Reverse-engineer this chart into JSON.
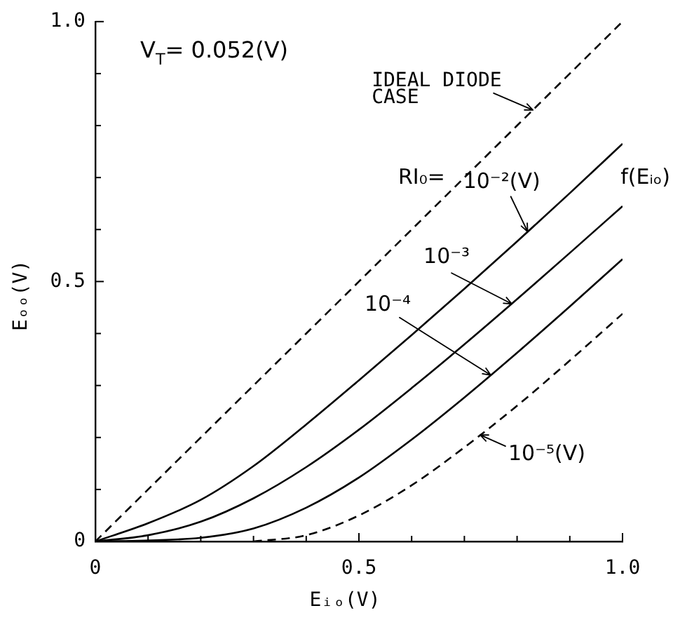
{
  "chart_data": {
    "type": "line",
    "xlabel": "Eᵢₒ(V)",
    "ylabel": "Eₒₒ(V)",
    "annotations": [
      "V$_{T}$= 0.052(V)",
      "RI₀=",
      "f(Eᵢₒ)",
      {
        "text": "IDEAL DIODE CASE",
        "x": 0.83,
        "y": 0.83
      },
      {
        "text": "10⁻²(V)",
        "x": 0.82,
        "y": 0.596
      },
      {
        "text": "10⁻³",
        "x": 0.79,
        "y": 0.457
      },
      {
        "text": "10⁻⁴",
        "x": 0.75,
        "y": 0.32
      },
      {
        "text": "10⁻⁵(V)",
        "x": 0.73,
        "y": 0.205
      }
    ],
    "x": [
      0,
      0.1,
      0.2,
      0.3,
      0.4,
      0.5,
      0.6,
      0.7,
      0.8,
      0.9,
      1.0
    ],
    "series": [
      {
        "color": "#000000",
        "line_style": "dashed",
        "values": [
          0,
          0.1,
          0.2,
          0.3,
          0.4,
          0.5,
          0.6,
          0.7,
          0.8,
          0.9,
          1.0
        ]
      },
      {
        "color": "#000000",
        "line_style": "solid",
        "values": [
          0,
          0.035,
          0.08,
          0.145,
          0.225,
          0.31,
          0.397,
          0.486,
          0.577,
          0.67,
          0.765
        ]
      },
      {
        "color": "#000000",
        "line_style": "solid",
        "values": [
          0,
          0.012,
          0.038,
          0.083,
          0.143,
          0.215,
          0.295,
          0.379,
          0.466,
          0.555,
          0.645
        ]
      },
      {
        "color": "#000000",
        "line_style": "solid",
        "values": [
          0,
          0.002,
          0.007,
          0.025,
          0.065,
          0.123,
          0.196,
          0.277,
          0.363,
          0.452,
          0.543
        ]
      },
      {
        "color": "#000000",
        "line_style": "dashed",
        "values": [
          null,
          null,
          null,
          0,
          0.012,
          0.05,
          0.108,
          0.181,
          0.261,
          0.348,
          0.438
        ]
      }
    ],
    "xlim": [
      0,
      1
    ],
    "ylim": [
      0,
      1
    ],
    "xticks": [
      0,
      {
        "value": 0.1,
        "label": null
      },
      {
        "value": 0.2,
        "label": null
      },
      {
        "value": 0.3,
        "label": null
      },
      {
        "value": 0.4,
        "label": null
      },
      0.5,
      {
        "value": 0.6,
        "label": null
      },
      {
        "value": 0.7,
        "label": null
      },
      {
        "value": 0.8,
        "label": null
      },
      {
        "value": 0.9,
        "label": null
      },
      {
        "value": 1,
        "label": "1.0"
      }
    ],
    "yticks": [
      0,
      {
        "value": 0.1,
        "label": null
      },
      {
        "value": 0.2,
        "label": null
      },
      {
        "value": 0.3,
        "label": null
      },
      {
        "value": 0.4,
        "label": null
      },
      0.5,
      {
        "value": 0.6,
        "label": null
      },
      {
        "value": 0.7,
        "label": null
      },
      {
        "value": 0.8,
        "label": null
      },
      {
        "value": 0.9,
        "label": null
      },
      {
        "value": 1,
        "label": "1.0"
      }
    ],
    "marker": "none"
  }
}
